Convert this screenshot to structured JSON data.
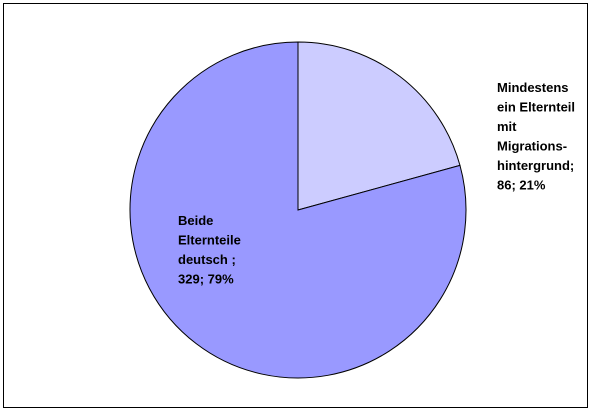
{
  "chart_data": {
    "type": "pie",
    "title": "",
    "legend": "none",
    "slices": [
      {
        "category": "Mindestens ein Elternteil mit Migrationshintergrund",
        "value": 86,
        "percent": 21,
        "color": "#ccccff",
        "label_lines": [
          "Mindestens",
          "ein Elternteil",
          "mit",
          "Migrations-",
          "hintergrund;",
          "86; 21%"
        ]
      },
      {
        "category": "Beide Elternteile deutsch",
        "value": 329,
        "percent": 79,
        "color": "#9999ff",
        "label_lines": [
          "Beide",
          "Elternteile",
          "deutsch ;",
          "329; 79%"
        ]
      }
    ]
  }
}
